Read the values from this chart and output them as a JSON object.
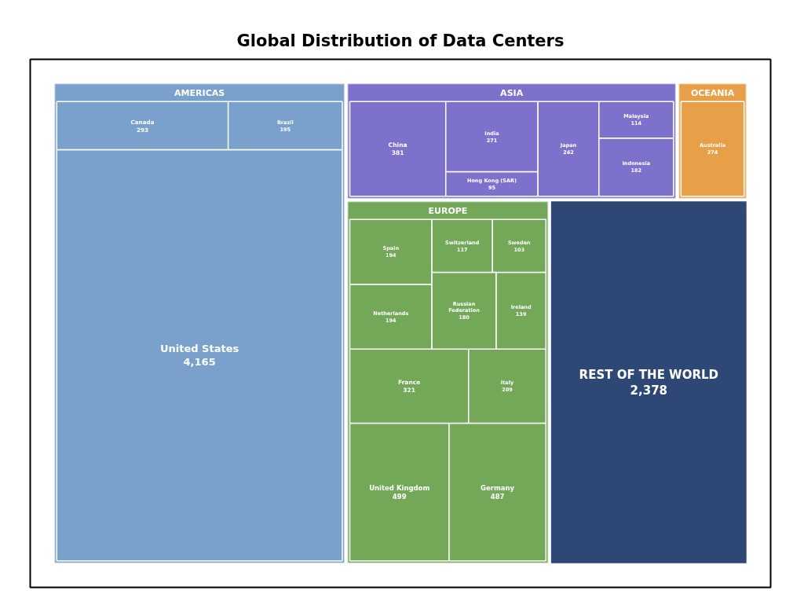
{
  "chart_data": {
    "type": "other",
    "title": "Global Distribution of Data Centers",
    "categories": [
      "United States",
      "Canada",
      "Brazil",
      "United Kingdom",
      "Germany",
      "France",
      "Italy",
      "Netherlands",
      "Spain",
      "Russian Federation",
      "Ireland",
      "Switzerland",
      "Sweden",
      "REST OF THE WORLD",
      "China",
      "Hong Kong (SAR)",
      "India",
      "Japan",
      "Indonesia",
      "Malaysia",
      "Australia"
    ],
    "series": [
      {
        "name": "AMERICAS",
        "color": "#7aa1cc",
        "values": [
          4165,
          293,
          195,
          null,
          null,
          null,
          null,
          null,
          null,
          null,
          null,
          null,
          null,
          null,
          null,
          null,
          null,
          null,
          null,
          null,
          null
        ],
        "value_labels": [
          "4,165",
          "293",
          "195",
          null,
          null,
          null,
          null,
          null,
          null,
          null,
          null,
          null,
          null,
          null,
          null,
          null,
          null,
          null,
          null,
          null,
          null
        ]
      },
      {
        "name": "EUROPE",
        "color": "#72a857",
        "values": [
          null,
          null,
          null,
          499,
          487,
          321,
          209,
          194,
          194,
          180,
          139,
          117,
          103,
          null,
          null,
          null,
          null,
          null,
          null,
          null,
          null
        ],
        "value_labels": [
          null,
          null,
          null,
          "499",
          "487",
          "321",
          "209",
          "194",
          "194",
          "180",
          "139",
          "117",
          "103",
          null,
          null,
          null,
          null,
          null,
          null,
          null,
          null
        ]
      },
      {
        "color": "#2e4876",
        "values": [
          null,
          null,
          null,
          null,
          null,
          null,
          null,
          null,
          null,
          null,
          null,
          null,
          null,
          2378,
          null,
          null,
          null,
          null,
          null,
          null,
          null
        ],
        "value_labels": [
          null,
          null,
          null,
          null,
          null,
          null,
          null,
          null,
          null,
          null,
          null,
          null,
          null,
          "2,378",
          null,
          null,
          null,
          null,
          null,
          null,
          null
        ]
      },
      {
        "name": "ASIA",
        "color": "#7c72cc",
        "values": [
          null,
          null,
          null,
          null,
          null,
          null,
          null,
          null,
          null,
          null,
          null,
          null,
          null,
          null,
          381,
          95,
          271,
          242,
          182,
          114,
          null
        ],
        "value_labels": [
          null,
          null,
          null,
          null,
          null,
          null,
          null,
          null,
          null,
          null,
          null,
          null,
          null,
          null,
          "381",
          "95",
          "271",
          "242",
          "182",
          "114",
          null
        ]
      },
      {
        "name": "OCEANIA",
        "color": "#e8a048",
        "values": [
          null,
          null,
          null,
          null,
          null,
          null,
          null,
          null,
          null,
          null,
          null,
          null,
          null,
          null,
          null,
          null,
          null,
          null,
          null,
          null,
          274
        ],
        "value_labels": [
          null,
          null,
          null,
          null,
          null,
          null,
          null,
          null,
          null,
          null,
          null,
          null,
          null,
          null,
          null,
          null,
          null,
          null,
          null,
          null,
          "274"
        ]
      }
    ]
  }
}
